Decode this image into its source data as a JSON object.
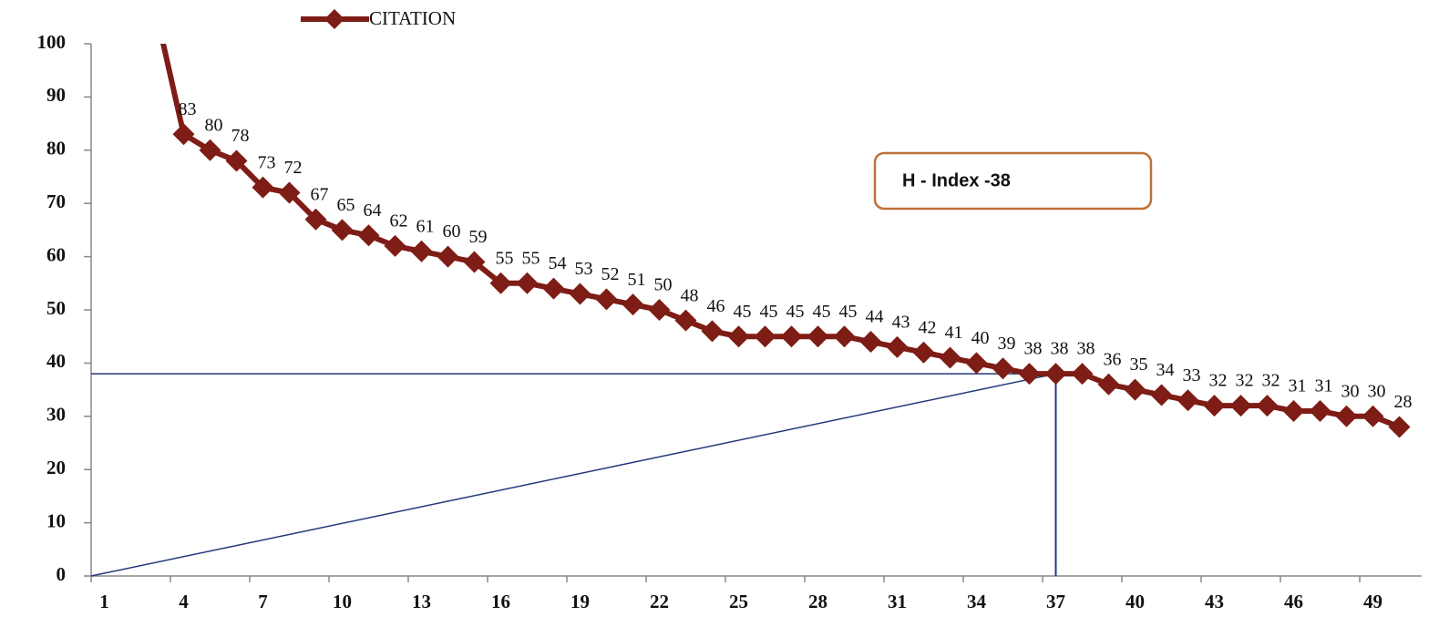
{
  "chart_data": {
    "type": "line",
    "x": [
      1,
      2,
      3,
      4,
      5,
      6,
      7,
      8,
      9,
      10,
      11,
      12,
      13,
      14,
      15,
      16,
      17,
      18,
      19,
      20,
      21,
      22,
      23,
      24,
      25,
      26,
      27,
      28,
      29,
      30,
      31,
      32,
      33,
      34,
      35,
      36,
      37,
      38,
      39,
      40,
      41,
      42,
      43,
      44,
      45,
      46,
      47,
      48,
      49,
      50
    ],
    "series": [
      {
        "name": "CITATION",
        "color": "#7e1c16",
        "values": [
          null,
          null,
          105,
          83,
          80,
          78,
          73,
          72,
          67,
          65,
          64,
          62,
          61,
          60,
          59,
          55,
          55,
          54,
          53,
          52,
          51,
          50,
          48,
          46,
          45,
          45,
          45,
          45,
          45,
          44,
          43,
          42,
          41,
          40,
          39,
          38,
          38,
          38,
          36,
          35,
          34,
          33,
          32,
          32,
          32,
          31,
          31,
          30,
          30,
          28
        ]
      }
    ],
    "xlim": [
      0.5,
      50.5
    ],
    "xticks": [
      1,
      4,
      7,
      10,
      13,
      16,
      19,
      22,
      25,
      28,
      31,
      34,
      37,
      40,
      43,
      46,
      49
    ],
    "ylim": [
      0,
      100
    ],
    "yticks": [
      0,
      10,
      20,
      30,
      40,
      50,
      60,
      70,
      80,
      90,
      100
    ],
    "annotation": "H - Index -38",
    "hline": 38,
    "vline": 37,
    "reference_color": "#22387a",
    "legend": "top"
  }
}
